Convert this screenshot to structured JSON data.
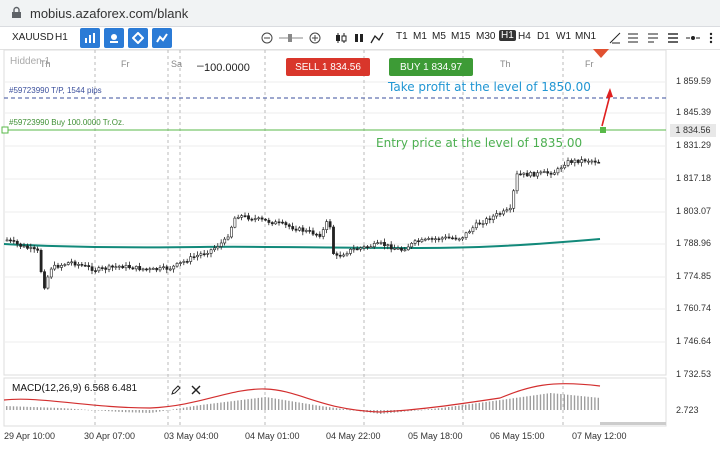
{
  "browser": {
    "url": "mobius.azaforex.com/blank"
  },
  "toolbar": {
    "symbol": "XAUUSD",
    "timeframe_small": "H1",
    "timeframes": [
      "T1",
      "M1",
      "M5",
      "M15",
      "M30",
      "H1",
      "H4",
      "D1",
      "W1",
      "MN1"
    ],
    "selected_timeframe": "H1",
    "tool_icons": [
      "bar-chart-icon",
      "crosshair-icon",
      "diamond-icon",
      "indicator-icon"
    ]
  },
  "trade_panel": {
    "volume": "100.0000",
    "sell_label": "SELL 1 834.56",
    "buy_label": "BUY 1 834.97"
  },
  "chart": {
    "watermark": "Hidden 1",
    "day_labels": [
      "Th",
      "Fr",
      "Sa",
      "Th",
      "Fr"
    ],
    "tp_line_label": "#59723990 T/P, 1544 pips",
    "entry_line_label": "#59723990 Buy 100.0000 Tr.Oz.",
    "tp_annotation": "Take profit at the level of 1850.00",
    "entry_annotation": "Entry price at the level of 1835.00",
    "price_ticks": [
      "1 859.59",
      "1 845.39",
      "1 831.29",
      "1 817.18",
      "1 803.07",
      "1 788.96",
      "1 774.85",
      "1 760.74",
      "1 746.64",
      "1 732.53"
    ],
    "current_price": "1 834.56",
    "date_labels": [
      "29 Apr 10:00",
      "30 Apr 07:00",
      "03 May 04:00",
      "04 May 01:00",
      "04 May 22:00",
      "05 May 18:00",
      "06 May 15:00",
      "07 May 12:00"
    ],
    "colors": {
      "tp_line": "#3b4f9c",
      "entry_line": "#58b948",
      "ma": "#12897a",
      "sell": "#d9362b",
      "buy": "#3d9b36",
      "annotation_tp": "#2196d3",
      "annotation_entry": "#4caf50",
      "arrow": "#e02020"
    }
  },
  "macd": {
    "label": "MACD(12,26,9) 6.568 6.481",
    "tick": "2.723"
  }
}
